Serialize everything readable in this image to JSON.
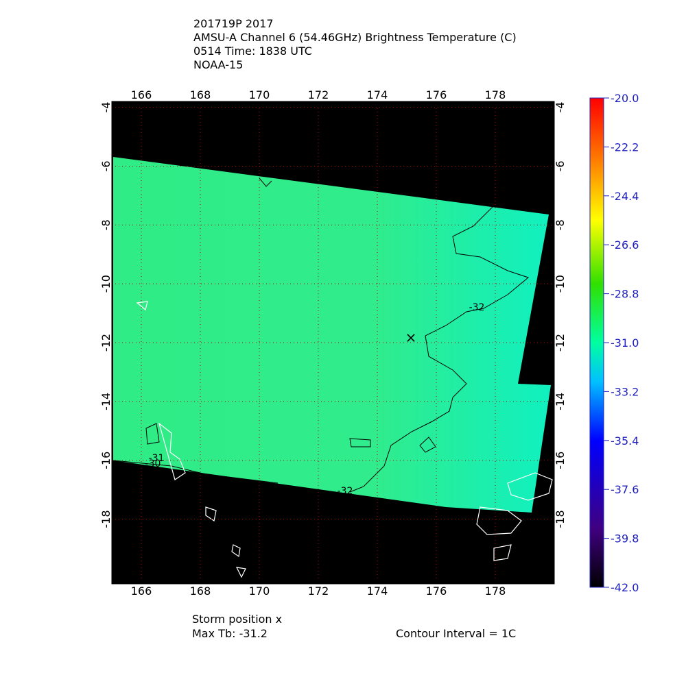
{
  "header": {
    "lines": [
      "201719P 2017",
      "AMSU-A Channel 6 (54.46GHz) Brightness Temperature (C)",
      "0514 Time: 1838 UTC",
      "NOAA-15"
    ]
  },
  "map": {
    "lonlim": [
      165,
      180
    ],
    "latlim": [
      -3.8,
      -20.2
    ],
    "lon_ticks": [
      166,
      168,
      170,
      172,
      174,
      176,
      178
    ],
    "lat_ticks": [
      -4,
      -6,
      -8,
      -10,
      -12,
      -14,
      -16,
      -18
    ],
    "contour_labels": [
      "-32",
      "-32",
      "-31",
      "-30"
    ]
  },
  "colorbar": {
    "ticks": [
      {
        "value": -20.0,
        "label": "-20.0"
      },
      {
        "value": -22.2,
        "label": "-22.2"
      },
      {
        "value": -24.4,
        "label": "-24.4"
      },
      {
        "value": -26.6,
        "label": "-26.6"
      },
      {
        "value": -28.8,
        "label": "-28.8"
      },
      {
        "value": -31.0,
        "label": "-31.0"
      },
      {
        "value": -33.2,
        "label": "-33.2"
      },
      {
        "value": -35.4,
        "label": "-35.4"
      },
      {
        "value": -37.6,
        "label": "-37.6"
      },
      {
        "value": -39.8,
        "label": "-39.8"
      },
      {
        "value": -42.0,
        "label": "-42.0"
      }
    ],
    "lim": [
      -42.0,
      -20.0
    ]
  },
  "footer": {
    "storm": "Storm position x",
    "max_tb": "Max Tb: -31.2",
    "interval": "Contour Interval = 1C"
  }
}
